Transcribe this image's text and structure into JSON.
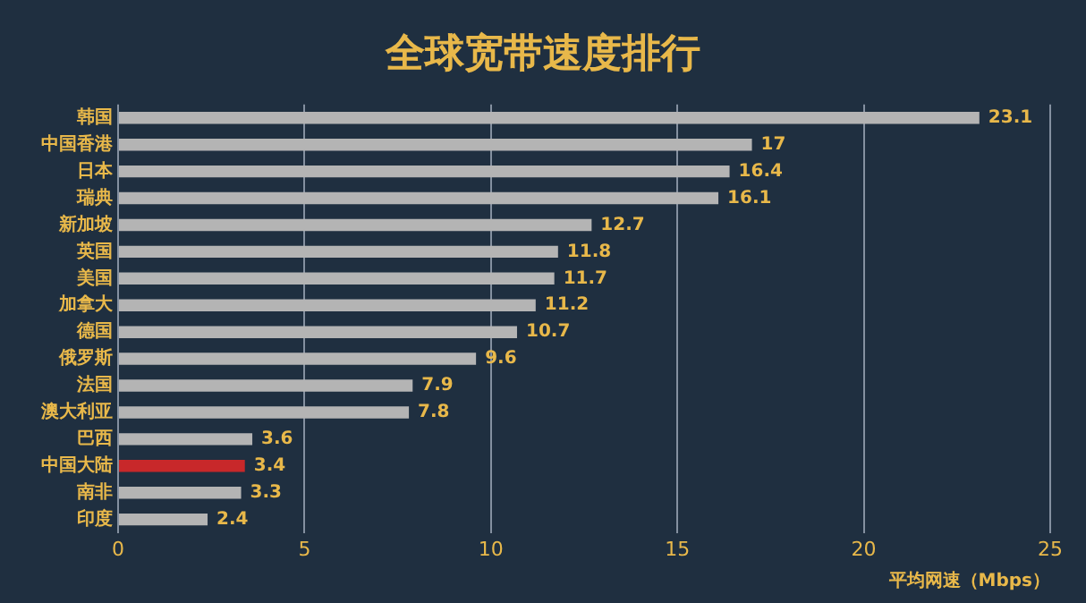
{
  "chart_data": {
    "type": "bar",
    "orientation": "horizontal",
    "title": "全球宽带速度排行",
    "xlabel": "平均网速（Mbps）",
    "categories": [
      "韩国",
      "中国香港",
      "日本",
      "瑞典",
      "新加坡",
      "英国",
      "美国",
      "加拿大",
      "德国",
      "俄罗斯",
      "法国",
      "澳大利亚",
      "巴西",
      "中国大陆",
      "南非",
      "印度"
    ],
    "values": [
      23.1,
      17,
      16.4,
      16.1,
      12.7,
      11.8,
      11.7,
      11.2,
      10.7,
      9.6,
      7.9,
      7.8,
      3.6,
      3.4,
      3.3,
      2.4
    ],
    "colors": [
      "#b4b4b4",
      "#b4b4b4",
      "#b4b4b4",
      "#b4b4b4",
      "#b4b4b4",
      "#b4b4b4",
      "#b4b4b4",
      "#b4b4b4",
      "#b4b4b4",
      "#b4b4b4",
      "#b4b4b4",
      "#b4b4b4",
      "#b4b4b4",
      "#c8282a",
      "#b4b4b4",
      "#b4b4b4"
    ],
    "xlim": [
      0,
      25
    ],
    "xticks": [
      0,
      5,
      10,
      15,
      20,
      25
    ],
    "grid": "x",
    "data_labels": true
  }
}
